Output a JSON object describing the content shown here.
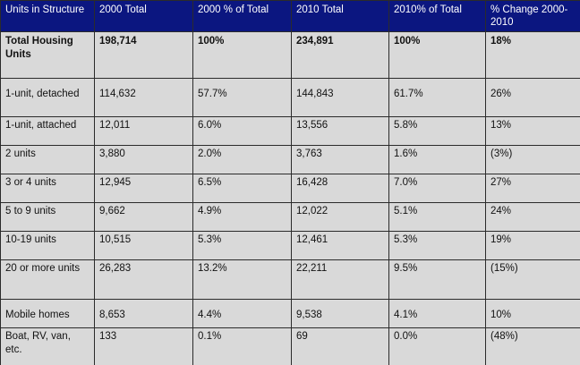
{
  "table": {
    "headers": [
      "Units in Structure",
      "2000 Total",
      "2000 % of Total",
      "2010 Total",
      "2010% of Total",
      "% Change 2000-2010"
    ],
    "rows": [
      [
        "Total Housing Units",
        "198,714",
        "100%",
        "234,891",
        "100%",
        "18%"
      ],
      [
        "1-unit, detached",
        "114,632",
        "57.7%",
        "144,843",
        "61.7%",
        "26%"
      ],
      [
        "1-unit, attached",
        "12,011",
        "6.0%",
        "13,556",
        "5.8%",
        "13%"
      ],
      [
        "2 units",
        "3,880",
        "2.0%",
        "3,763",
        "1.6%",
        "(3%)"
      ],
      [
        "3 or 4 units",
        "12,945",
        "6.5%",
        "16,428",
        "7.0%",
        "27%"
      ],
      [
        "5 to 9 units",
        "9,662",
        "4.9%",
        "12,022",
        "5.1%",
        "24%"
      ],
      [
        "10-19 units",
        "10,515",
        "5.3%",
        "12,461",
        "5.3%",
        "19%"
      ],
      [
        "20 or more units",
        "26,283",
        "13.2%",
        "22,211",
        "9.5%",
        "(15%)"
      ],
      [
        "Mobile homes",
        "8,653",
        "4.4%",
        "9,538",
        "4.1%",
        "10%"
      ],
      [
        "Boat, RV, van, etc.",
        "133",
        "0.1%",
        "69",
        "0.0%",
        "(48%)"
      ]
    ]
  },
  "colors": {
    "header_background": "#0b1680",
    "header_text": "#ffffff",
    "cell_background": "#d9d9d9",
    "border": "#2b2b2b"
  }
}
